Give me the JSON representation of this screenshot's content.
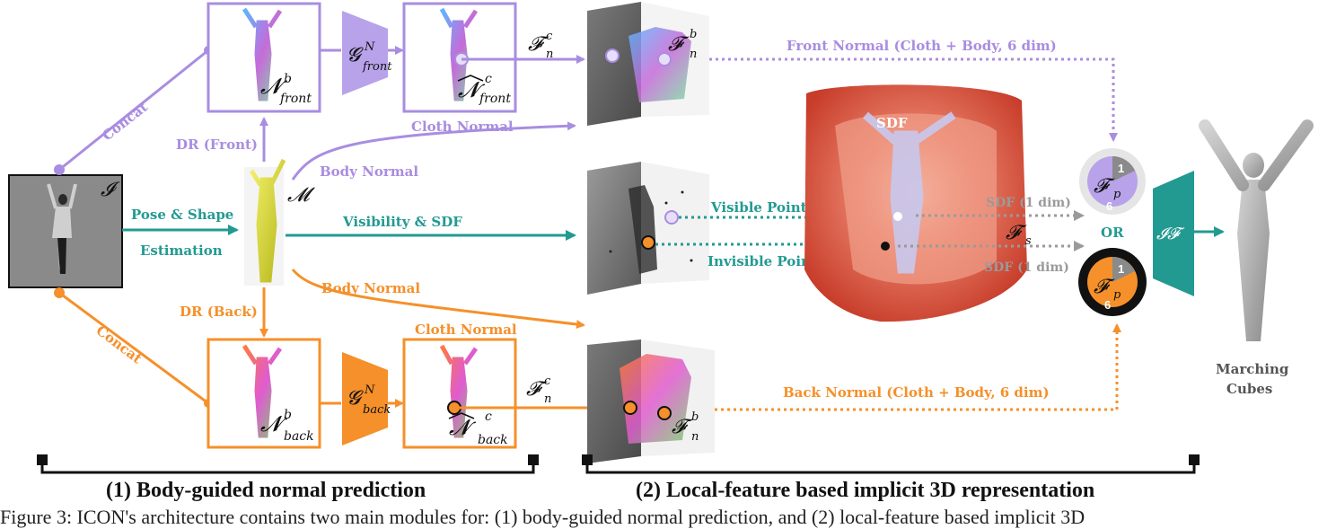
{
  "colors": {
    "purple": "#a98de0",
    "purple_fill": "#b8a2ea",
    "orange": "#f5902a",
    "teal": "#229a92",
    "gray": "#9a9a9a",
    "dark": "#222222",
    "sdf_red": "#e0604a"
  },
  "icons": {
    "encoder": "trapezoid-icon",
    "circle_point": "circle-icon"
  },
  "labels": {
    "concat_top": "Concat",
    "concat_bottom": "Concat",
    "dr_front": "DR (Front)",
    "dr_back": "DR (Back)",
    "pose_shape_1": "Pose & Shape",
    "pose_shape_2": "Estimation",
    "body_normal_top": "Body Normal",
    "body_normal_bottom": "Body Normal",
    "visibility_sdf": "Visibility & SDF",
    "cloth_normal_top": "Cloth Normal",
    "cloth_normal_bottom": "Cloth Normal",
    "front_normal": "Front Normal (Cloth + Body, 6 dim)",
    "back_normal": "Back Normal (Cloth + Body, 6 dim)",
    "visible_point": "Visible Point",
    "invisible_point": "Invisible Point",
    "sdf_1dim_top": "SDF (1 dim)",
    "sdf_1dim_bottom": "SDF (1 dim)",
    "sdf": "SDF",
    "or": "OR",
    "marching_1": "Marching",
    "marching_2": "Cubes"
  },
  "math": {
    "input": "𝓘",
    "smpl": "𝓜",
    "nb_front": "𝓝",
    "nb_front_sup": "b",
    "nb_front_sub": "front",
    "g_front": "𝓖",
    "g_front_sup": "N",
    "g_front_sub": "front",
    "nc_front": "𝓝",
    "nc_front_sup": "c",
    "nc_front_sub": "front",
    "nb_back": "𝓝",
    "nb_back_sup": "b",
    "nb_back_sub": "back",
    "g_back": "𝓖",
    "g_back_sup": "N",
    "g_back_sub": "back",
    "nc_back": "𝓝",
    "nc_back_sup": "c",
    "nc_back_sub": "back",
    "fnc": "𝓕",
    "fnc_sup": "c",
    "fnc_sub": "n",
    "fnb": "𝓕",
    "fnb_sup": "b",
    "fnb_sub": "n",
    "fs": "𝓕",
    "fs_sub": "s",
    "fp": "𝓕",
    "fp_sub": "p",
    "pie_one": "1",
    "pie_six": "6",
    "implicit": "𝓘𝓕"
  },
  "section_titles": {
    "part1": "(1) Body-guided normal prediction",
    "part2": "(2) Local-feature based implicit 3D representation"
  },
  "caption": "Figure 3: ICON's architecture contains two main modules for: (1) body-guided normal prediction, and (2) local-feature based implicit 3D"
}
